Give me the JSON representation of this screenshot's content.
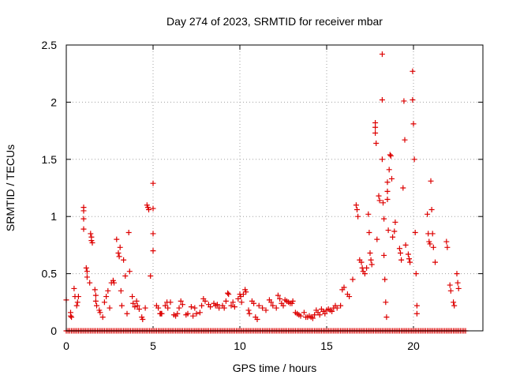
{
  "chart_data": {
    "type": "scatter",
    "title": "Day 274 of 2023, SRMTID for receiver mbar",
    "xlabel": "GPS time / hours",
    "ylabel": "SRMTID / TECUs",
    "xlim": [
      0,
      24
    ],
    "ylim": [
      0,
      2.5
    ],
    "x_ticks": [
      0,
      5,
      10,
      15,
      20
    ],
    "x_tick_labels": [
      "0",
      "5",
      "10",
      "15",
      "20"
    ],
    "y_ticks": [
      0,
      0.5,
      1,
      1.5,
      2,
      2.5
    ],
    "y_tick_labels": [
      "0",
      "0.5",
      "1",
      "1.5",
      "2",
      "2.5"
    ],
    "grid": true,
    "marker": "plus",
    "color": "#dd0000",
    "series": [
      {
        "name": "SRMTID",
        "points": [
          [
            0.0,
            0.27
          ],
          [
            0.25,
            0.13
          ],
          [
            0.25,
            0.16
          ],
          [
            0.3,
            0.12
          ],
          [
            0.45,
            0.37
          ],
          [
            0.5,
            0.3
          ],
          [
            0.6,
            0.22
          ],
          [
            0.65,
            0.25
          ],
          [
            0.7,
            0.3
          ],
          [
            1.0,
            1.08
          ],
          [
            1.0,
            1.05
          ],
          [
            1.0,
            0.98
          ],
          [
            1.0,
            0.89
          ],
          [
            1.15,
            0.55
          ],
          [
            1.2,
            0.52
          ],
          [
            1.2,
            0.47
          ],
          [
            1.35,
            0.42
          ],
          [
            1.4,
            0.85
          ],
          [
            1.45,
            0.82
          ],
          [
            1.45,
            0.79
          ],
          [
            1.5,
            0.77
          ],
          [
            1.65,
            0.36
          ],
          [
            1.7,
            0.31
          ],
          [
            1.7,
            0.26
          ],
          [
            1.75,
            0.22
          ],
          [
            1.9,
            0.18
          ],
          [
            1.95,
            0.16
          ],
          [
            2.1,
            0.12
          ],
          [
            2.2,
            0.25
          ],
          [
            2.3,
            0.3
          ],
          [
            2.4,
            0.35
          ],
          [
            2.5,
            0.2
          ],
          [
            2.6,
            0.42
          ],
          [
            2.7,
            0.44
          ],
          [
            2.75,
            0.42
          ],
          [
            2.9,
            0.8
          ],
          [
            3.0,
            0.68
          ],
          [
            3.05,
            0.65
          ],
          [
            3.1,
            0.73
          ],
          [
            3.15,
            0.35
          ],
          [
            3.2,
            0.22
          ],
          [
            3.3,
            0.62
          ],
          [
            3.4,
            0.48
          ],
          [
            3.5,
            0.15
          ],
          [
            3.6,
            0.86
          ],
          [
            3.65,
            0.52
          ],
          [
            3.8,
            0.3
          ],
          [
            3.85,
            0.24
          ],
          [
            3.95,
            0.21
          ],
          [
            4.05,
            0.26
          ],
          [
            4.1,
            0.22
          ],
          [
            4.2,
            0.19
          ],
          [
            4.35,
            0.12
          ],
          [
            4.4,
            0.1
          ],
          [
            4.55,
            0.2
          ],
          [
            4.65,
            1.1
          ],
          [
            4.7,
            1.08
          ],
          [
            4.75,
            1.06
          ],
          [
            4.85,
            0.48
          ],
          [
            5.0,
            1.29
          ],
          [
            5.0,
            1.07
          ],
          [
            5.0,
            0.85
          ],
          [
            5.0,
            0.7
          ],
          [
            5.2,
            0.22
          ],
          [
            5.3,
            0.2
          ],
          [
            5.4,
            0.15
          ],
          [
            5.45,
            0.15
          ],
          [
            5.5,
            0.15
          ],
          [
            5.7,
            0.22
          ],
          [
            5.8,
            0.25
          ],
          [
            5.85,
            0.2
          ],
          [
            6.0,
            0.25
          ],
          [
            6.2,
            0.14
          ],
          [
            6.3,
            0.13
          ],
          [
            6.4,
            0.15
          ],
          [
            6.5,
            0.2
          ],
          [
            6.6,
            0.26
          ],
          [
            6.7,
            0.23
          ],
          [
            6.9,
            0.14
          ],
          [
            7.0,
            0.15
          ],
          [
            7.2,
            0.21
          ],
          [
            7.3,
            0.13
          ],
          [
            7.4,
            0.2
          ],
          [
            7.5,
            0.15
          ],
          [
            7.7,
            0.16
          ],
          [
            7.8,
            0.22
          ],
          [
            7.9,
            0.28
          ],
          [
            8.0,
            0.26
          ],
          [
            8.2,
            0.23
          ],
          [
            8.3,
            0.21
          ],
          [
            8.5,
            0.24
          ],
          [
            8.6,
            0.22
          ],
          [
            8.7,
            0.23
          ],
          [
            8.8,
            0.2
          ],
          [
            9.0,
            0.22
          ],
          [
            9.1,
            0.2
          ],
          [
            9.2,
            0.26
          ],
          [
            9.3,
            0.33
          ],
          [
            9.35,
            0.32
          ],
          [
            9.5,
            0.22
          ],
          [
            9.6,
            0.25
          ],
          [
            9.7,
            0.21
          ],
          [
            9.9,
            0.28
          ],
          [
            10.0,
            0.32
          ],
          [
            10.05,
            0.3
          ],
          [
            10.1,
            0.25
          ],
          [
            10.2,
            0.32
          ],
          [
            10.3,
            0.36
          ],
          [
            10.35,
            0.34
          ],
          [
            10.5,
            0.18
          ],
          [
            10.55,
            0.15
          ],
          [
            10.7,
            0.26
          ],
          [
            10.8,
            0.24
          ],
          [
            10.9,
            0.12
          ],
          [
            11.0,
            0.1
          ],
          [
            11.1,
            0.22
          ],
          [
            11.3,
            0.2
          ],
          [
            11.5,
            0.18
          ],
          [
            11.7,
            0.27
          ],
          [
            11.8,
            0.25
          ],
          [
            11.9,
            0.22
          ],
          [
            12.1,
            0.2
          ],
          [
            12.2,
            0.31
          ],
          [
            12.3,
            0.28
          ],
          [
            12.4,
            0.24
          ],
          [
            12.5,
            0.22
          ],
          [
            12.6,
            0.27
          ],
          [
            12.7,
            0.26
          ],
          [
            12.8,
            0.25
          ],
          [
            12.9,
            0.24
          ],
          [
            13.0,
            0.24
          ],
          [
            13.05,
            0.26
          ],
          [
            13.2,
            0.16
          ],
          [
            13.3,
            0.15
          ],
          [
            13.4,
            0.14
          ],
          [
            13.5,
            0.13
          ],
          [
            13.7,
            0.16
          ],
          [
            13.8,
            0.12
          ],
          [
            13.9,
            0.12
          ],
          [
            14.0,
            0.13
          ],
          [
            14.1,
            0.12
          ],
          [
            14.2,
            0.11
          ],
          [
            14.3,
            0.14
          ],
          [
            14.4,
            0.18
          ],
          [
            14.5,
            0.16
          ],
          [
            14.6,
            0.14
          ],
          [
            14.7,
            0.19
          ],
          [
            14.8,
            0.17
          ],
          [
            14.9,
            0.15
          ],
          [
            15.0,
            0.18
          ],
          [
            15.1,
            0.19
          ],
          [
            15.2,
            0.18
          ],
          [
            15.3,
            0.17
          ],
          [
            15.4,
            0.2
          ],
          [
            15.5,
            0.22
          ],
          [
            15.6,
            0.2
          ],
          [
            15.8,
            0.22
          ],
          [
            15.9,
            0.36
          ],
          [
            16.0,
            0.38
          ],
          [
            16.2,
            0.32
          ],
          [
            16.3,
            0.3
          ],
          [
            16.5,
            0.45
          ],
          [
            16.7,
            1.1
          ],
          [
            16.75,
            1.06
          ],
          [
            16.8,
            1.0
          ],
          [
            16.9,
            0.62
          ],
          [
            17.0,
            0.6
          ],
          [
            17.05,
            0.55
          ],
          [
            17.1,
            0.52
          ],
          [
            17.2,
            0.5
          ],
          [
            17.3,
            0.55
          ],
          [
            17.4,
            1.02
          ],
          [
            17.45,
            0.86
          ],
          [
            17.5,
            0.68
          ],
          [
            17.55,
            0.62
          ],
          [
            17.6,
            0.58
          ],
          [
            17.8,
            1.82
          ],
          [
            17.8,
            1.78
          ],
          [
            17.8,
            1.73
          ],
          [
            17.85,
            1.64
          ],
          [
            17.9,
            0.8
          ],
          [
            18.0,
            1.18
          ],
          [
            18.05,
            1.14
          ],
          [
            18.2,
            2.42
          ],
          [
            18.2,
            2.02
          ],
          [
            18.2,
            1.5
          ],
          [
            18.25,
            1.12
          ],
          [
            18.3,
            0.98
          ],
          [
            18.3,
            0.66
          ],
          [
            18.35,
            0.45
          ],
          [
            18.4,
            0.25
          ],
          [
            18.45,
            0.12
          ],
          [
            18.5,
            1.3
          ],
          [
            18.5,
            1.22
          ],
          [
            18.5,
            1.15
          ],
          [
            18.55,
            0.88
          ],
          [
            18.6,
            1.41
          ],
          [
            18.65,
            1.54
          ],
          [
            18.7,
            1.53
          ],
          [
            18.75,
            1.33
          ],
          [
            18.8,
            0.82
          ],
          [
            18.9,
            0.87
          ],
          [
            18.95,
            0.95
          ],
          [
            19.2,
            0.72
          ],
          [
            19.25,
            0.68
          ],
          [
            19.3,
            0.62
          ],
          [
            19.4,
            1.25
          ],
          [
            19.45,
            2.01
          ],
          [
            19.5,
            1.67
          ],
          [
            19.55,
            0.75
          ],
          [
            19.7,
            0.67
          ],
          [
            19.75,
            0.63
          ],
          [
            19.8,
            0.6
          ],
          [
            19.95,
            2.27
          ],
          [
            19.95,
            2.02
          ],
          [
            20.0,
            1.81
          ],
          [
            20.05,
            1.5
          ],
          [
            20.1,
            0.86
          ],
          [
            20.15,
            0.5
          ],
          [
            20.2,
            0.22
          ],
          [
            20.2,
            0.15
          ],
          [
            20.8,
            1.02
          ],
          [
            20.85,
            0.85
          ],
          [
            20.9,
            0.78
          ],
          [
            20.95,
            0.76
          ],
          [
            21.0,
            1.31
          ],
          [
            21.05,
            1.06
          ],
          [
            21.1,
            0.85
          ],
          [
            21.15,
            0.73
          ],
          [
            21.25,
            0.6
          ],
          [
            21.9,
            0.78
          ],
          [
            21.95,
            0.73
          ],
          [
            22.1,
            0.4
          ],
          [
            22.15,
            0.35
          ],
          [
            22.3,
            0.25
          ],
          [
            22.35,
            0.22
          ],
          [
            22.5,
            0.5
          ],
          [
            22.55,
            0.42
          ],
          [
            22.6,
            0.37
          ]
        ]
      }
    ],
    "zero_line_range": [
      0,
      23
    ]
  }
}
